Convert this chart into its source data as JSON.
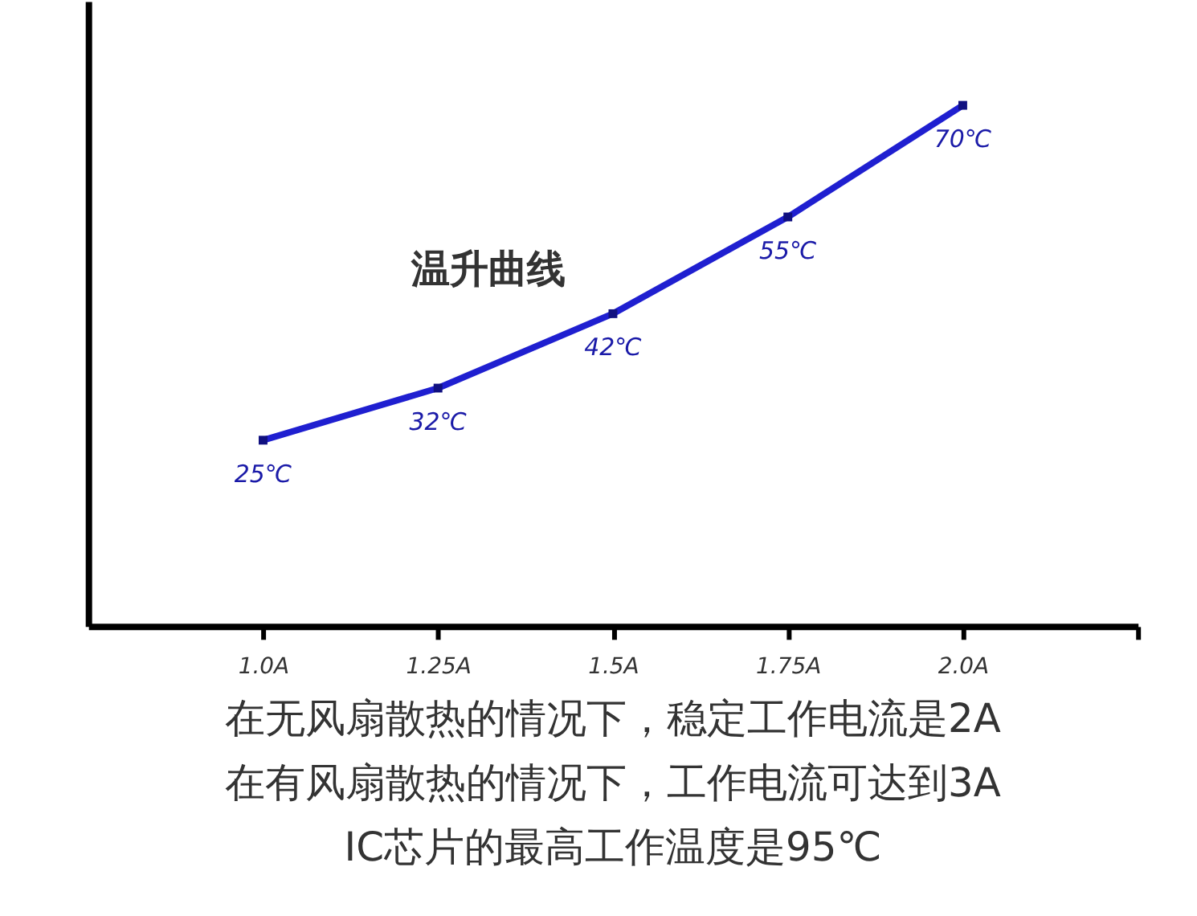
{
  "chart_data": {
    "type": "line",
    "categories": [
      "1.0A",
      "1.25A",
      "1.5A",
      "1.75A",
      "2.0A",
      null
    ],
    "series": [
      {
        "color": "#1f1fd0",
        "values": [
          25,
          32,
          42,
          55,
          70,
          null
        ],
        "value_labels": [
          "25℃",
          "32℃",
          "42℃",
          "55℃",
          "70℃",
          null
        ]
      }
    ],
    "ylim": [
      0,
      84
    ],
    "tick_labels": "x",
    "marker": "square",
    "line_style": "solid",
    "grid": false,
    "annotations": [
      "温升曲线",
      "在无风扇散热的情况下，稳定工作电流是2A",
      "在有风扇散热的情况下，工作电流可达到3A",
      "IC芯片的最高工作温度是95℃"
    ]
  }
}
